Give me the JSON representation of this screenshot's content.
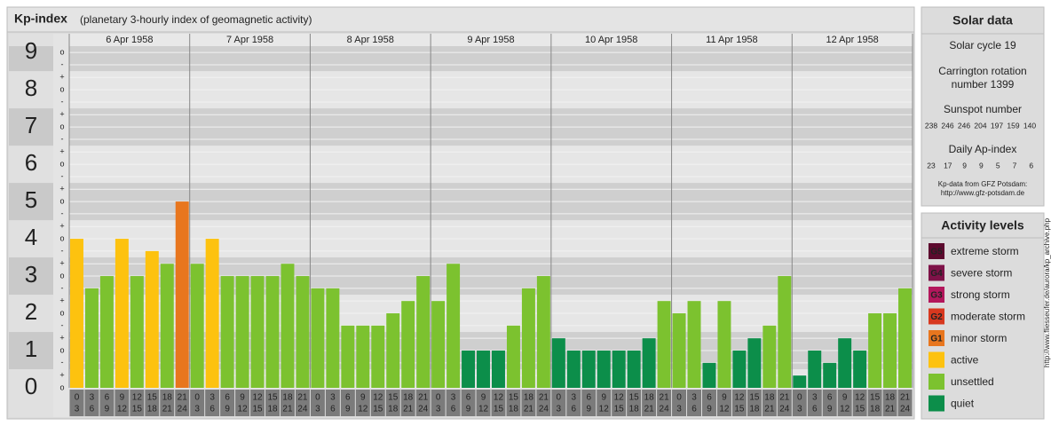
{
  "chart_data": {
    "type": "bar",
    "title": "Kp-index",
    "subtitle": "(planetary 3-hourly index of geomagnetic activity)",
    "ylim": [
      0,
      9.17
    ],
    "yticks": [
      0,
      1,
      2,
      3,
      4,
      5,
      6,
      7,
      8,
      9
    ],
    "minor_ticks": [
      {
        "value": 0,
        "label": "o"
      },
      {
        "value": 0.33,
        "label": "+"
      },
      {
        "value": 0.67,
        "label": "-"
      },
      {
        "value": 1,
        "label": "o"
      },
      {
        "value": 1.33,
        "label": "+"
      },
      {
        "value": 1.67,
        "label": "-"
      },
      {
        "value": 2,
        "label": "o"
      },
      {
        "value": 2.33,
        "label": "+"
      },
      {
        "value": 2.67,
        "label": "-"
      },
      {
        "value": 3,
        "label": "o"
      },
      {
        "value": 3.33,
        "label": "+"
      },
      {
        "value": 3.67,
        "label": "-"
      },
      {
        "value": 4,
        "label": "o"
      },
      {
        "value": 4.33,
        "label": "+"
      },
      {
        "value": 4.67,
        "label": "-"
      },
      {
        "value": 5,
        "label": "o"
      },
      {
        "value": 5.33,
        "label": "+"
      },
      {
        "value": 5.67,
        "label": "-"
      },
      {
        "value": 6,
        "label": "o"
      },
      {
        "value": 6.33,
        "label": "+"
      },
      {
        "value": 6.67,
        "label": "-"
      },
      {
        "value": 7,
        "label": "o"
      },
      {
        "value": 7.33,
        "label": "+"
      },
      {
        "value": 7.67,
        "label": "-"
      },
      {
        "value": 8,
        "label": "o"
      },
      {
        "value": 8.33,
        "label": "+"
      },
      {
        "value": 8.67,
        "label": "-"
      },
      {
        "value": 9,
        "label": "o"
      }
    ],
    "hours": [
      0,
      3,
      6,
      9,
      12,
      15,
      18,
      21,
      24
    ],
    "grid": true,
    "series": [
      {
        "name": "6 Apr 1958",
        "values": [
          4,
          2.67,
          3,
          4,
          3,
          3.67,
          3.33,
          5
        ],
        "colors": [
          "#fdc20f",
          "#7cc22f",
          "#7cc22f",
          "#fdc20f",
          "#7cc22f",
          "#fdc20f",
          "#7cc22f",
          "#e8761e"
        ]
      },
      {
        "name": "7 Apr 1958",
        "values": [
          3.33,
          4,
          3,
          3,
          3,
          3,
          3.33,
          3
        ],
        "colors": [
          "#7cc22f",
          "#fdc20f",
          "#7cc22f",
          "#7cc22f",
          "#7cc22f",
          "#7cc22f",
          "#7cc22f",
          "#7cc22f"
        ]
      },
      {
        "name": "8 Apr 1958",
        "values": [
          2.67,
          2.67,
          1.67,
          1.67,
          1.67,
          2,
          2.33,
          3
        ],
        "colors": [
          "#7cc22f",
          "#7cc22f",
          "#7cc22f",
          "#7cc22f",
          "#7cc22f",
          "#7cc22f",
          "#7cc22f",
          "#7cc22f"
        ]
      },
      {
        "name": "9 Apr 1958",
        "values": [
          2.33,
          3.33,
          1,
          1,
          1,
          1.67,
          2.67,
          3
        ],
        "colors": [
          "#7cc22f",
          "#7cc22f",
          "#0c8e4a",
          "#0c8e4a",
          "#0c8e4a",
          "#7cc22f",
          "#7cc22f",
          "#7cc22f"
        ]
      },
      {
        "name": "10 Apr 1958",
        "values": [
          1.33,
          1,
          1,
          1,
          1,
          1,
          1.33,
          2.33
        ],
        "colors": [
          "#0c8e4a",
          "#0c8e4a",
          "#0c8e4a",
          "#0c8e4a",
          "#0c8e4a",
          "#0c8e4a",
          "#0c8e4a",
          "#7cc22f"
        ]
      },
      {
        "name": "11 Apr 1958",
        "values": [
          2,
          2.33,
          0.67,
          2.33,
          1,
          1.33,
          1.67,
          3
        ],
        "colors": [
          "#7cc22f",
          "#7cc22f",
          "#0c8e4a",
          "#7cc22f",
          "#0c8e4a",
          "#0c8e4a",
          "#7cc22f",
          "#7cc22f"
        ]
      },
      {
        "name": "12 Apr 1958",
        "values": [
          0.33,
          1,
          0.67,
          1.33,
          1,
          2,
          2,
          2.67
        ],
        "colors": [
          "#0c8e4a",
          "#0c8e4a",
          "#0c8e4a",
          "#0c8e4a",
          "#0c8e4a",
          "#7cc22f",
          "#7cc22f",
          "#7cc22f"
        ]
      }
    ]
  },
  "solar_data": {
    "title": "Solar data",
    "cycle": "Solar cycle 19",
    "carrington": [
      "Carrington rotation",
      "number 1399"
    ],
    "sunspot_label": "Sunspot number",
    "sunspot_numbers": [
      238,
      246,
      246,
      204,
      197,
      159,
      140
    ],
    "ap_label": "Daily Ap-index",
    "ap_values": [
      23,
      17,
      9,
      9,
      5,
      7,
      6
    ],
    "note": [
      "Kp-data from GFZ Potsdam:",
      "http://www.gfz-potsdam.de"
    ]
  },
  "activity_levels": {
    "title": "Activity levels",
    "items": [
      {
        "code": "G5",
        "name": "extreme storm",
        "color": "#5c0a2e"
      },
      {
        "code": "G4",
        "name": "severe storm",
        "color": "#7e1248"
      },
      {
        "code": "G3",
        "name": "strong storm",
        "color": "#b3175c"
      },
      {
        "code": "G2",
        "name": "moderate storm",
        "color": "#d7381f"
      },
      {
        "code": "G1",
        "name": "minor storm",
        "color": "#e8761e"
      },
      {
        "name": "active",
        "color": "#fdc20f"
      },
      {
        "name": "unsettled",
        "color": "#7cc22f"
      },
      {
        "name": "quiet",
        "color": "#0c8e4a"
      }
    ]
  },
  "side_note": "http://www.fliesseufer.de/aurora/kp_archive.php"
}
